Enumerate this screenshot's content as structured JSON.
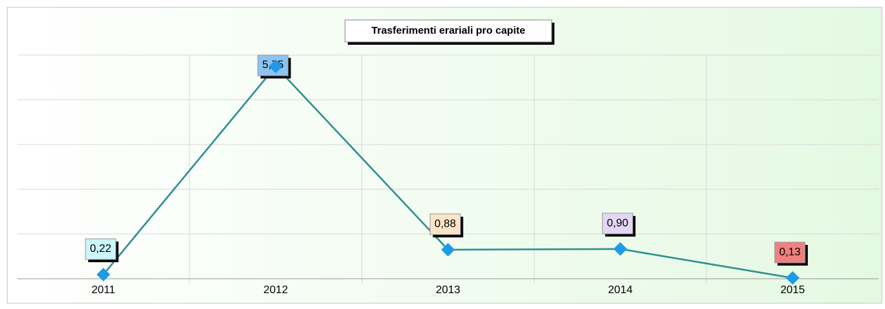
{
  "chart_data": {
    "type": "line",
    "title": "Trasferimenti erariali pro capite",
    "categories": [
      "2011",
      "2012",
      "2013",
      "2014",
      "2015"
    ],
    "values": [
      0.22,
      5.75,
      0.88,
      0.9,
      0.13
    ],
    "value_labels": [
      "0,22",
      "5,75",
      "0,88",
      "0,90",
      "0,13"
    ],
    "label_colors": [
      "#ccf7fb",
      "#8ec3f0",
      "#fbe3c8",
      "#e3d7f6",
      "#f08080"
    ],
    "color": "#2f8f8f",
    "marker_color": "#1e9be6",
    "ylim": [
      0.11,
      6.05
    ],
    "grid": true
  }
}
